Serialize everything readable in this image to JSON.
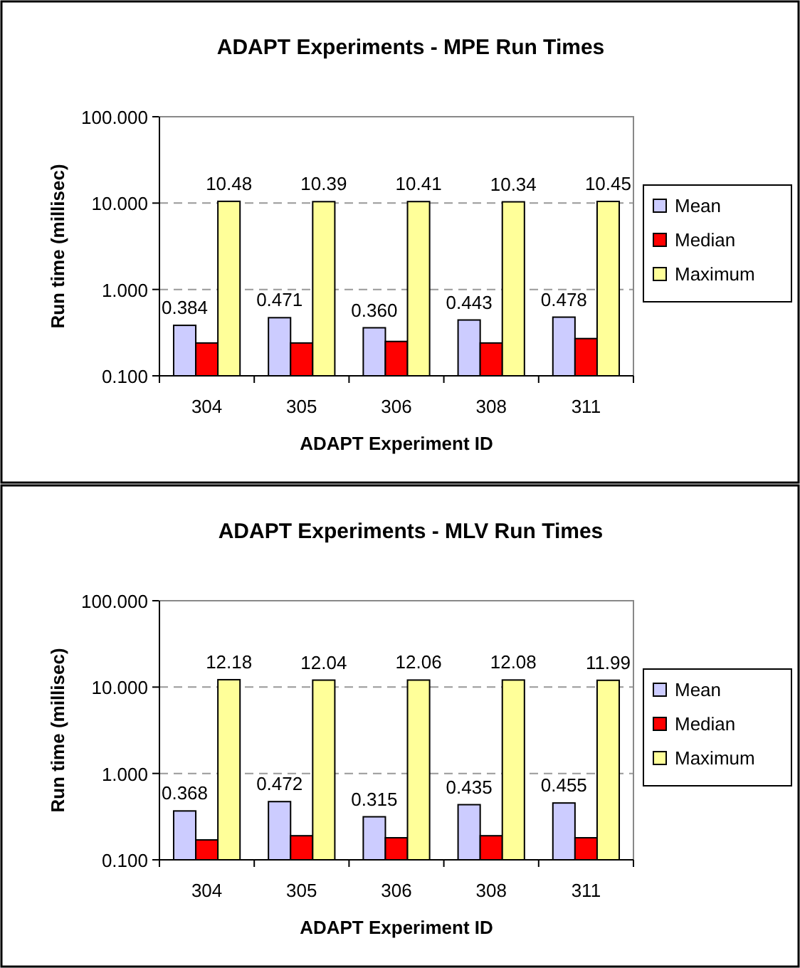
{
  "chart_data": [
    {
      "type": "bar",
      "title": "ADAPT Experiments - MPE Run Times",
      "xlabel": "ADAPT Experiment ID",
      "ylabel": "Run time (millisec)",
      "categories": [
        "304",
        "305",
        "306",
        "308",
        "311"
      ],
      "log": "y",
      "ylim": [
        0.1,
        100
      ],
      "yticks": [
        {
          "value": 0.1,
          "label": "0.100"
        },
        {
          "value": 1,
          "label": "1.000"
        },
        {
          "value": 10,
          "label": "10.000"
        },
        {
          "value": 100,
          "label": "100.000"
        }
      ],
      "grid": "y",
      "legend": "right",
      "series": [
        {
          "name": "Mean",
          "color": "#ccccff",
          "values": [
            0.384,
            0.471,
            0.36,
            0.443,
            0.478
          ],
          "value_labels": [
            "0.384",
            "0.471",
            "0.360",
            "0.443",
            "0.478"
          ]
        },
        {
          "name": "Median",
          "color": "#ff0000",
          "values": [
            0.24,
            0.24,
            0.25,
            0.24,
            0.27
          ]
        },
        {
          "name": "Maximum",
          "color": "#ffff99",
          "values": [
            10.48,
            10.39,
            10.41,
            10.34,
            10.45
          ],
          "value_labels": [
            "10.48",
            "10.39",
            "10.41",
            "10.34",
            "10.45"
          ]
        }
      ]
    },
    {
      "type": "bar",
      "title": "ADAPT Experiments - MLV Run Times",
      "xlabel": "ADAPT Experiment ID",
      "ylabel": "Run time (millisec)",
      "categories": [
        "304",
        "305",
        "306",
        "308",
        "311"
      ],
      "log": "y",
      "ylim": [
        0.1,
        100
      ],
      "yticks": [
        {
          "value": 0.1,
          "label": "0.100"
        },
        {
          "value": 1,
          "label": "1.000"
        },
        {
          "value": 10,
          "label": "10.000"
        },
        {
          "value": 100,
          "label": "100.000"
        }
      ],
      "grid": "y",
      "legend": "right",
      "series": [
        {
          "name": "Mean",
          "color": "#ccccff",
          "values": [
            0.368,
            0.472,
            0.315,
            0.435,
            0.455
          ],
          "value_labels": [
            "0.368",
            "0.472",
            "0.315",
            "0.435",
            "0.455"
          ]
        },
        {
          "name": "Median",
          "color": "#ff0000",
          "values": [
            0.17,
            0.19,
            0.18,
            0.19,
            0.18
          ]
        },
        {
          "name": "Maximum",
          "color": "#ffff99",
          "values": [
            12.18,
            12.04,
            12.06,
            12.08,
            11.99
          ],
          "value_labels": [
            "12.18",
            "12.04",
            "12.06",
            "12.08",
            "11.99"
          ]
        }
      ]
    }
  ]
}
